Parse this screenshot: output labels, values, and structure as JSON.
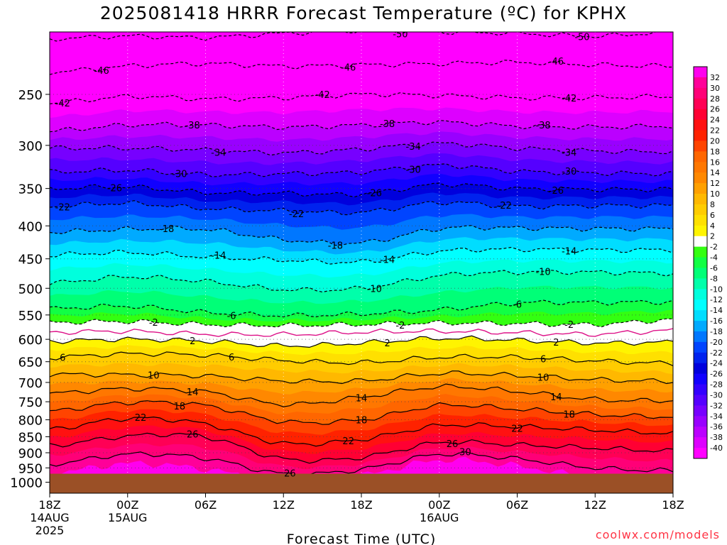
{
  "title": "2025081418 HRRR Forecast Temperature (ºC) for KPHX",
  "credit": "coolwx.com/models",
  "chart_data": {
    "type": "heatmap",
    "title": "2025081418 HRRR Forecast Temperature (ºC) for KPHX",
    "xlabel": "Forecast Time (UTC)",
    "ylabel": "",
    "x_range_hours": [
      0,
      48
    ],
    "y_range_hpa": [
      200,
      1040
    ],
    "y_scale": "log",
    "y_ticks": [
      250,
      300,
      350,
      400,
      450,
      500,
      550,
      600,
      650,
      700,
      750,
      800,
      850,
      900,
      950,
      1000
    ],
    "x_ticks": [
      {
        "hour": 0,
        "lines": [
          "18Z",
          "14AUG",
          "2025"
        ]
      },
      {
        "hour": 6,
        "lines": [
          "00Z",
          "15AUG"
        ]
      },
      {
        "hour": 12,
        "lines": [
          "06Z"
        ]
      },
      {
        "hour": 18,
        "lines": [
          "12Z"
        ]
      },
      {
        "hour": 24,
        "lines": [
          "18Z"
        ]
      },
      {
        "hour": 30,
        "lines": [
          "00Z",
          "16AUG"
        ]
      },
      {
        "hour": 36,
        "lines": [
          "06Z"
        ]
      },
      {
        "hour": 42,
        "lines": [
          "12Z"
        ]
      },
      {
        "hour": 48,
        "lines": [
          "18Z"
        ]
      }
    ],
    "surface_pressure_hpa": 970,
    "ground_color": "#9b5026",
    "colorbar_labels": [
      32,
      30,
      28,
      26,
      24,
      22,
      20,
      18,
      16,
      14,
      12,
      10,
      8,
      6,
      4,
      2,
      -2,
      -4,
      -6,
      -8,
      -10,
      -12,
      -14,
      -16,
      -18,
      -20,
      -22,
      -24,
      -26,
      -28,
      -30,
      -32,
      -34,
      -36,
      -38,
      -40
    ],
    "colorbar_colors": [
      "#ff00ee",
      "#ff0099",
      "#ff0077",
      "#ff0055",
      "#ff0033",
      "#ff1111",
      "#ff2200",
      "#ff4400",
      "#ff6600",
      "#ff7700",
      "#ff8800",
      "#ffa000",
      "#ffb800",
      "#ffcc00",
      "#ffe000",
      "#fff400",
      "#ffffff",
      "#33ff11",
      "#11ff44",
      "#00ff77",
      "#00ffaa",
      "#00ffdd",
      "#00ffff",
      "#00ddff",
      "#00aaff",
      "#0077ff",
      "#0044ff",
      "#0022ee",
      "#0000dd",
      "#1100ff",
      "#3300ff",
      "#5500ff",
      "#7700ff",
      "#9900ff",
      "#bb00ff",
      "#dd00ff",
      "#ff00ff"
    ],
    "isotherms": [
      {
        "value": -50,
        "label": "-50",
        "p": [
          205,
          203,
          204,
          201,
          199,
          200,
          201,
          203,
          200
        ],
        "labels_at_hours": [
          27,
          41
        ]
      },
      {
        "value": -46,
        "label": "-46",
        "p": [
          231,
          226,
          224,
          226,
          225,
          224,
          223,
          225,
          226
        ],
        "labels_at_hours": [
          4,
          23,
          39
        ]
      },
      {
        "value": -42,
        "label": "-42",
        "p": [
          258,
          252,
          254,
          253,
          250,
          251,
          253,
          253,
          252
        ],
        "labels_at_hours": [
          1,
          21,
          40
        ]
      },
      {
        "value": -38,
        "label": "-38",
        "p": [
          285,
          279,
          279,
          281,
          279,
          276,
          280,
          281,
          280
        ],
        "labels_at_hours": [
          11,
          26,
          38
        ]
      },
      {
        "value": -34,
        "label": "-34",
        "p": [
          303,
          303,
          305,
          308,
          304,
          298,
          303,
          306,
          307
        ],
        "labels_at_hours": [
          13,
          28,
          40
        ]
      },
      {
        "value": -30,
        "label": "-30",
        "p": [
          330,
          328,
          333,
          332,
          330,
          322,
          329,
          331,
          332
        ],
        "labels_at_hours": [
          10,
          28,
          40
        ]
      },
      {
        "value": -26,
        "label": "-26",
        "p": [
          350,
          348,
          355,
          356,
          357,
          345,
          350,
          351,
          351
        ],
        "labels_at_hours": [
          5,
          25,
          39
        ]
      },
      {
        "value": -22,
        "label": "-22",
        "p": [
          373,
          369,
          376,
          379,
          381,
          368,
          373,
          372,
          372
        ],
        "labels_at_hours": [
          1,
          19,
          35
        ]
      },
      {
        "value": -18,
        "label": "-18",
        "p": [
          409,
          405,
          405,
          420,
          425,
          404,
          403,
          404,
          404
        ],
        "labels_at_hours": [
          9,
          22
        ]
      },
      {
        "value": -14,
        "label": "-14",
        "p": [
          444,
          440,
          447,
          452,
          455,
          438,
          435,
          436,
          436
        ],
        "labels_at_hours": [
          13,
          26,
          40
        ]
      },
      {
        "value": -10,
        "label": "-10",
        "p": [
          491,
          480,
          488,
          502,
          500,
          478,
          472,
          472,
          474
        ],
        "labels_at_hours": [
          25,
          38
        ]
      },
      {
        "value": -6,
        "label": "-6",
        "p": [
          538,
          533,
          545,
          551,
          548,
          540,
          527,
          526,
          525
        ],
        "labels_at_hours": [
          14,
          36
        ]
      },
      {
        "value": -2,
        "label": "-2",
        "p": [
          565,
          563,
          569,
          571,
          569,
          566,
          567,
          569,
          559
        ],
        "labels_at_hours": [
          8,
          27,
          40
        ]
      },
      {
        "value": 0,
        "label": "",
        "p": [
          585,
          583,
          589,
          590,
          585,
          583,
          586,
          589,
          581
        ],
        "labels_at_hours": []
      },
      {
        "value": 2,
        "label": "2",
        "p": [
          604,
          600,
          604,
          614,
          608,
          598,
          602,
          608,
          606
        ],
        "labels_at_hours": [
          11,
          26,
          39
        ]
      },
      {
        "value": 6,
        "label": "6",
        "p": [
          640,
          632,
          635,
          647,
          652,
          640,
          640,
          648,
          654
        ],
        "labels_at_hours": [
          1,
          14,
          38
        ]
      },
      {
        "value": 10,
        "label": "10",
        "p": [
          680,
          681,
          684,
          696,
          696,
          678,
          683,
          693,
          697
        ],
        "labels_at_hours": [
          8,
          38
        ]
      },
      {
        "value": 14,
        "label": "14",
        "p": [
          728,
          716,
          724,
          757,
          738,
          711,
          723,
          744,
          747
        ],
        "labels_at_hours": [
          11,
          24,
          39
        ]
      },
      {
        "value": 18,
        "label": "18",
        "p": [
          776,
          752,
          760,
          805,
          800,
          760,
          770,
          785,
          792
        ],
        "labels_at_hours": [
          10,
          24,
          40
        ]
      },
      {
        "value": 22,
        "label": "22",
        "p": [
          828,
          796,
          812,
          870,
          858,
          817,
          820,
          830,
          840
        ],
        "labels_at_hours": [
          7,
          23,
          36
        ]
      },
      {
        "value": 26,
        "label": "26",
        "p": [
          878,
          848,
          850,
          920,
          915,
          868,
          875,
          885,
          895
        ],
        "labels_at_hours": [
          11,
          31
        ]
      },
      {
        "value": 30,
        "label": "30",
        "p": [
          938,
          905,
          918,
          970,
          955,
          905,
          920,
          950,
          960
        ],
        "labels_at_hours": [
          32
        ]
      }
    ],
    "extra_labels": [
      {
        "hour": 18.5,
        "p": 967,
        "text": "26"
      }
    ]
  }
}
